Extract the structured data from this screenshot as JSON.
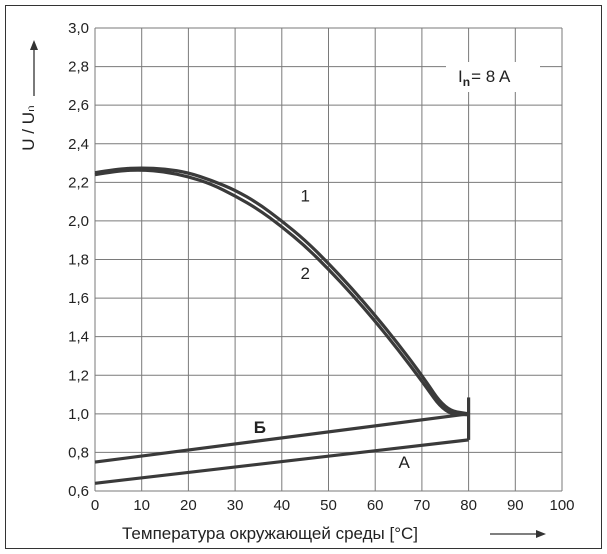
{
  "chart_data": {
    "type": "line",
    "xlabel": "Температура окружающей среды [°C]",
    "ylabel": "U / Uₙ",
    "xlim": [
      0,
      100
    ],
    "ylim": [
      0.6,
      3.0
    ],
    "x_ticks": [
      "0",
      "10",
      "20",
      "30",
      "40",
      "50",
      "60",
      "70",
      "80",
      "90",
      "100"
    ],
    "y_ticks": [
      "0,6",
      "0,8",
      "1,0",
      "1,2",
      "1,4",
      "1,6",
      "1,8",
      "2,0",
      "2,2",
      "2,4",
      "2,6",
      "2,8",
      "3,0"
    ],
    "grid": true,
    "legend": {
      "prefix": "I",
      "subscript": "n",
      "suffix": "= 8 A",
      "placement": "top-right"
    },
    "series": [
      {
        "name": "1",
        "x": [
          0,
          5,
          10,
          15,
          20,
          25,
          30,
          35,
          40,
          45,
          50,
          55,
          60,
          65,
          70,
          75,
          80
        ],
        "y": [
          2.25,
          2.27,
          2.275,
          2.27,
          2.25,
          2.21,
          2.16,
          2.09,
          2.0,
          1.9,
          1.78,
          1.65,
          1.51,
          1.36,
          1.2,
          1.02,
          1.0
        ]
      },
      {
        "name": "2",
        "x": [
          0,
          5,
          10,
          15,
          20,
          25,
          30,
          35,
          40,
          45,
          50,
          55,
          60,
          65,
          70,
          75,
          80
        ],
        "y": [
          2.24,
          2.26,
          2.265,
          2.255,
          2.23,
          2.19,
          2.13,
          2.06,
          1.97,
          1.87,
          1.75,
          1.62,
          1.48,
          1.33,
          1.17,
          1.0,
          0.995
        ]
      },
      {
        "name": "Б",
        "x": [
          0,
          80
        ],
        "y": [
          0.75,
          1.0
        ]
      },
      {
        "name": "A",
        "x": [
          0,
          80
        ],
        "y": [
          0.64,
          0.865
        ]
      }
    ],
    "vertical_segment": {
      "x": 80,
      "y": [
        0.865,
        1.085
      ]
    },
    "curve_labels": [
      {
        "text": "1",
        "x": 44,
        "y": 2.1
      },
      {
        "text": "2",
        "x": 44,
        "y": 1.7
      },
      {
        "text": "Б",
        "x": 34,
        "y": 0.9
      },
      {
        "text": "A",
        "x": 65,
        "y": 0.72
      }
    ],
    "line_color": "#3a3a3a",
    "grid_color": "#7a7a7a"
  }
}
